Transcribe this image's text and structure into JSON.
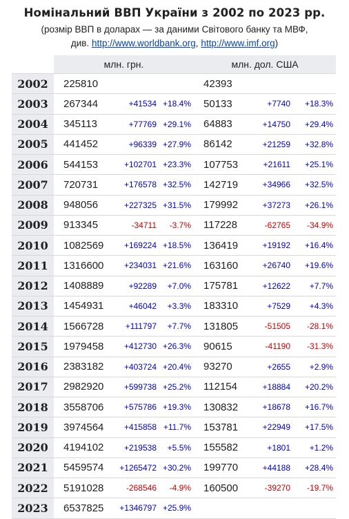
{
  "title": "Номінальний ВВП України з 2002 по 2023 рр.",
  "subtitle_line1": "(розмір ВВП в доларах — за даними Світового банку та МВФ,",
  "subtitle_prefix": "див.",
  "link_worldbank": "http://www.worldbank.org",
  "link_sep": ",",
  "link_imf": "http://www.imf.org",
  "subtitle_suffix": ")",
  "headers": {
    "uah": "млн. грн.",
    "usd": "млн. дол. США"
  },
  "rows": [
    {
      "year": "2002",
      "uah": "225810",
      "uah_d": "",
      "uah_p": "",
      "usd": "42393",
      "usd_d": "",
      "usd_p": ""
    },
    {
      "year": "2003",
      "uah": "267344",
      "uah_d": "+41534",
      "uah_p": "+18.4%",
      "usd": "50133",
      "usd_d": "+7740",
      "usd_p": "+18.3%"
    },
    {
      "year": "2004",
      "uah": "345113",
      "uah_d": "+77769",
      "uah_p": "+29.1%",
      "usd": "64883",
      "usd_d": "+14750",
      "usd_p": "+29.4%"
    },
    {
      "year": "2005",
      "uah": "441452",
      "uah_d": "+96339",
      "uah_p": "+27.9%",
      "usd": "86142",
      "usd_d": "+21259",
      "usd_p": "+32.8%"
    },
    {
      "year": "2006",
      "uah": "544153",
      "uah_d": "+102701",
      "uah_p": "+23.3%",
      "usd": "107753",
      "usd_d": "+21611",
      "usd_p": "+25.1%"
    },
    {
      "year": "2007",
      "uah": "720731",
      "uah_d": "+176578",
      "uah_p": "+32.5%",
      "usd": "142719",
      "usd_d": "+34966",
      "usd_p": "+32.5%"
    },
    {
      "year": "2008",
      "uah": "948056",
      "uah_d": "+227325",
      "uah_p": "+31.5%",
      "usd": "179992",
      "usd_d": "+37273",
      "usd_p": "+26.1%"
    },
    {
      "year": "2009",
      "uah": "913345",
      "uah_d": "-34711",
      "uah_p": "-3.7%",
      "usd": "117228",
      "usd_d": "-62765",
      "usd_p": "-34.9%"
    },
    {
      "year": "2010",
      "uah": "1082569",
      "uah_d": "+169224",
      "uah_p": "+18.5%",
      "usd": "136419",
      "usd_d": "+19192",
      "usd_p": "+16.4%"
    },
    {
      "year": "2011",
      "uah": "1316600",
      "uah_d": "+234031",
      "uah_p": "+21.6%",
      "usd": "163160",
      "usd_d": "+26740",
      "usd_p": "+19.6%"
    },
    {
      "year": "2012",
      "uah": "1408889",
      "uah_d": "+92289",
      "uah_p": "+7.0%",
      "usd": "175781",
      "usd_d": "+12622",
      "usd_p": "+7.7%"
    },
    {
      "year": "2013",
      "uah": "1454931",
      "uah_d": "+46042",
      "uah_p": "+3.3%",
      "usd": "183310",
      "usd_d": "+7529",
      "usd_p": "+4.3%"
    },
    {
      "year": "2014",
      "uah": "1566728",
      "uah_d": "+111797",
      "uah_p": "+7.7%",
      "usd": "131805",
      "usd_d": "-51505",
      "usd_p": "-28.1%"
    },
    {
      "year": "2015",
      "uah": "1979458",
      "uah_d": "+412730",
      "uah_p": "+26.3%",
      "usd": "90615",
      "usd_d": "-41190",
      "usd_p": "-31.3%"
    },
    {
      "year": "2016",
      "uah": "2383182",
      "uah_d": "+403724",
      "uah_p": "+20.4%",
      "usd": "93270",
      "usd_d": "+2655",
      "usd_p": "+2.9%"
    },
    {
      "year": "2017",
      "uah": "2982920",
      "uah_d": "+599738",
      "uah_p": "+25.2%",
      "usd": "112154",
      "usd_d": "+18884",
      "usd_p": "+20.2%"
    },
    {
      "year": "2018",
      "uah": "3558706",
      "uah_d": "+575786",
      "uah_p": "+19.3%",
      "usd": "130832",
      "usd_d": "+18678",
      "usd_p": "+16.7%"
    },
    {
      "year": "2019",
      "uah": "3974564",
      "uah_d": "+415858",
      "uah_p": "+11.7%",
      "usd": "153781",
      "usd_d": "+22949",
      "usd_p": "+17.5%"
    },
    {
      "year": "2020",
      "uah": "4194102",
      "uah_d": "+219538",
      "uah_p": "+5.5%",
      "usd": "155582",
      "usd_d": "+1801",
      "usd_p": "+1.2%"
    },
    {
      "year": "2021",
      "uah": "5459574",
      "uah_d": "+1265472",
      "uah_p": "+30.2%",
      "usd": "199770",
      "usd_d": "+44188",
      "usd_p": "+28.4%"
    },
    {
      "year": "2022",
      "uah": "5191028",
      "uah_d": "-268546",
      "uah_p": "-4.9%",
      "usd": "160500",
      "usd_d": "-39270",
      "usd_p": "-19.7%"
    },
    {
      "year": "2023",
      "uah": "6537825",
      "uah_d": "+1346797",
      "uah_p": "+25.9%",
      "usd": "",
      "usd_d": "",
      "usd_p": ""
    }
  ]
}
